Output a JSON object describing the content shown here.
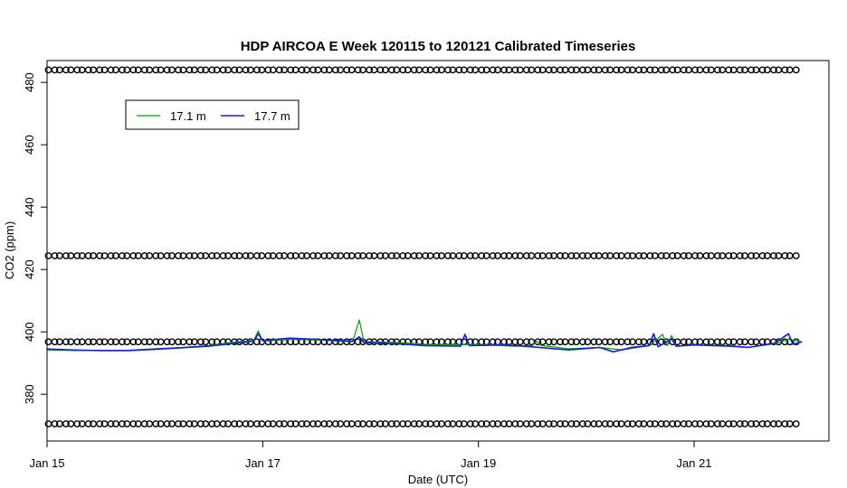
{
  "chart_data": {
    "type": "line",
    "title": "HDP AIRCOA E  Week 120115 to 120121  Calibrated Timeseries",
    "xlabel": "Date (UTC)",
    "ylabel": "CO2 (ppm)",
    "x_axis": {
      "min": "2012-01-15T00:00",
      "max": "2012-01-22T06:00",
      "ticks": [
        {
          "date": "2012-01-15T00:00",
          "label": "Jan 15"
        },
        {
          "date": "2012-01-17T00:00",
          "label": "Jan 17"
        },
        {
          "date": "2012-01-19T00:00",
          "label": "Jan 19"
        },
        {
          "date": "2012-01-21T00:00",
          "label": "Jan 21"
        }
      ]
    },
    "y_axis": {
      "min": 365,
      "max": 487,
      "ticks": [
        {
          "value": 380,
          "label": "380"
        },
        {
          "value": 400,
          "label": "400"
        },
        {
          "value": 420,
          "label": "420"
        },
        {
          "value": 440,
          "label": "440"
        },
        {
          "value": 460,
          "label": "460"
        },
        {
          "value": 480,
          "label": "480"
        }
      ]
    },
    "grid": false,
    "legend_position": "top-left",
    "series": [
      {
        "name": "17.1 m",
        "color": "#00a000",
        "points": [
          [
            "2012-01-15T00:00",
            394.2
          ],
          [
            "2012-01-15T06:00",
            394.0
          ],
          [
            "2012-01-15T12:00",
            394.0
          ],
          [
            "2012-01-15T18:00",
            394.1
          ],
          [
            "2012-01-16T00:00",
            394.6
          ],
          [
            "2012-01-16T06:00",
            395.0
          ],
          [
            "2012-01-16T12:00",
            395.6
          ],
          [
            "2012-01-16T18:00",
            396.8
          ],
          [
            "2012-01-16T22:00",
            397.2
          ],
          [
            "2012-01-16T23:00",
            400.3
          ],
          [
            "2012-01-17T00:00",
            397.0
          ],
          [
            "2012-01-17T06:00",
            397.6
          ],
          [
            "2012-01-17T12:00",
            397.4
          ],
          [
            "2012-01-17T20:00",
            396.8
          ],
          [
            "2012-01-17T21:30",
            403.8
          ],
          [
            "2012-01-17T22:30",
            396.9
          ],
          [
            "2012-01-18T06:00",
            396.6
          ],
          [
            "2012-01-18T12:00",
            396.0
          ],
          [
            "2012-01-18T20:00",
            395.8
          ],
          [
            "2012-01-19T00:00",
            396.0
          ],
          [
            "2012-01-19T08:00",
            395.4
          ],
          [
            "2012-01-19T12:00",
            395.6
          ],
          [
            "2012-01-19T13:00",
            397.0
          ],
          [
            "2012-01-19T14:00",
            395.6
          ],
          [
            "2012-01-19T20:00",
            394.6
          ],
          [
            "2012-01-20T03:00",
            395.0
          ],
          [
            "2012-01-20T08:00",
            394.2
          ],
          [
            "2012-01-20T14:00",
            395.6
          ],
          [
            "2012-01-20T17:00",
            399.2
          ],
          [
            "2012-01-20T18:00",
            395.6
          ],
          [
            "2012-01-20T19:00",
            398.8
          ],
          [
            "2012-01-20T20:00",
            395.4
          ],
          [
            "2012-01-21T00:00",
            395.8
          ],
          [
            "2012-01-21T08:00",
            395.6
          ],
          [
            "2012-01-21T12:00",
            395.0
          ],
          [
            "2012-01-21T18:00",
            396.2
          ],
          [
            "2012-01-21T21:00",
            397.6
          ],
          [
            "2012-01-22T00:00",
            396.8
          ]
        ]
      },
      {
        "name": "17.7 m",
        "color": "#1a1adc",
        "points": [
          [
            "2012-01-15T00:00",
            394.5
          ],
          [
            "2012-01-15T06:00",
            394.2
          ],
          [
            "2012-01-15T12:00",
            394.0
          ],
          [
            "2012-01-15T18:00",
            394.0
          ],
          [
            "2012-01-16T00:00",
            394.4
          ],
          [
            "2012-01-16T06:00",
            394.9
          ],
          [
            "2012-01-16T12:00",
            395.4
          ],
          [
            "2012-01-16T18:00",
            396.4
          ],
          [
            "2012-01-16T22:00",
            397.0
          ],
          [
            "2012-01-16T23:00",
            399.4
          ],
          [
            "2012-01-17T00:00",
            397.2
          ],
          [
            "2012-01-17T06:00",
            398.0
          ],
          [
            "2012-01-17T12:00",
            397.6
          ],
          [
            "2012-01-17T20:00",
            397.0
          ],
          [
            "2012-01-17T21:30",
            398.4
          ],
          [
            "2012-01-17T22:30",
            396.6
          ],
          [
            "2012-01-18T06:00",
            396.2
          ],
          [
            "2012-01-18T12:00",
            395.6
          ],
          [
            "2012-01-18T20:00",
            395.4
          ],
          [
            "2012-01-18T21:00",
            399.2
          ],
          [
            "2012-01-18T22:00",
            395.6
          ],
          [
            "2012-01-19T06:00",
            395.8
          ],
          [
            "2012-01-19T12:00",
            395.2
          ],
          [
            "2012-01-19T20:00",
            394.2
          ],
          [
            "2012-01-20T03:00",
            395.0
          ],
          [
            "2012-01-20T06:00",
            393.6
          ],
          [
            "2012-01-20T10:00",
            395.0
          ],
          [
            "2012-01-20T14:00",
            395.6
          ],
          [
            "2012-01-20T15:00",
            399.4
          ],
          [
            "2012-01-20T16:00",
            395.2
          ],
          [
            "2012-01-20T19:00",
            397.8
          ],
          [
            "2012-01-20T20:00",
            395.4
          ],
          [
            "2012-01-21T00:00",
            395.8
          ],
          [
            "2012-01-21T08:00",
            395.4
          ],
          [
            "2012-01-21T12:00",
            395.0
          ],
          [
            "2012-01-21T18:00",
            396.4
          ],
          [
            "2012-01-21T21:00",
            399.4
          ],
          [
            "2012-01-21T22:00",
            396.0
          ],
          [
            "2012-01-22T00:00",
            396.8
          ]
        ]
      }
    ],
    "calibration_markers": {
      "symbol": "open-circle",
      "color": "#000000",
      "levels": [
        370.5,
        396.8,
        424.4,
        484.0
      ],
      "start": "2012-01-15T01:00",
      "end": "2012-01-22T00:00",
      "interval_hours": 2.5
    }
  }
}
